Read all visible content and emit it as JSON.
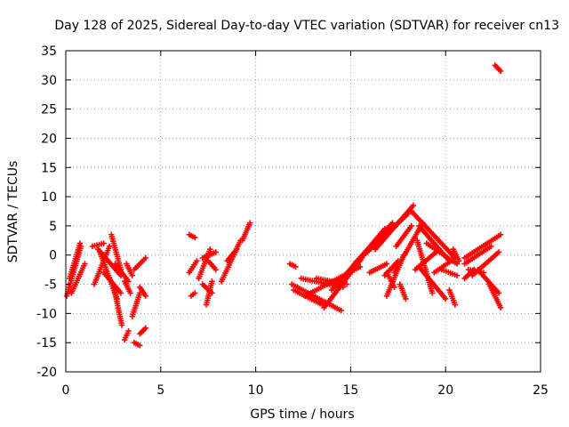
{
  "chart_data": {
    "type": "scatter",
    "title": "Day 128 of 2025, Sidereal Day-to-day VTEC variation (SDTVAR) for receiver cn13",
    "xlabel": "GPS time / hours",
    "ylabel": "SDTVAR / TECUs",
    "xlim": [
      0,
      25
    ],
    "ylim": [
      -20,
      35
    ],
    "xticks": [
      "0",
      "5",
      "10",
      "15",
      "20",
      "25"
    ],
    "yticks": [
      "-20",
      "-15",
      "-10",
      "-5",
      "0",
      "5",
      "10",
      "15",
      "20",
      "25",
      "30",
      "35"
    ],
    "grid": true,
    "marker": "+",
    "color": "#ff0000",
    "tracks": [
      {
        "x0": 0.05,
        "y0": -7.0,
        "x1": 0.8,
        "y1": 1.5
      },
      {
        "x0": 0.2,
        "y0": -4.0,
        "x1": 0.75,
        "y1": 2.0
      },
      {
        "x0": 0.3,
        "y0": -6.5,
        "x1": 1.0,
        "y1": -1.5
      },
      {
        "x0": 1.4,
        "y0": 1.5,
        "x1": 2.0,
        "y1": 2.0
      },
      {
        "x0": 1.5,
        "y0": -5.0,
        "x1": 2.3,
        "y1": 1.5
      },
      {
        "x0": 1.7,
        "y0": 1.0,
        "x1": 2.9,
        "y1": -3.5
      },
      {
        "x0": 1.8,
        "y0": 0.5,
        "x1": 2.7,
        "y1": -7.5
      },
      {
        "x0": 2.0,
        "y0": -3.0,
        "x1": 2.9,
        "y1": -6.5
      },
      {
        "x0": 2.4,
        "y0": 3.5,
        "x1": 2.9,
        "y1": -2.5
      },
      {
        "x0": 2.5,
        "y0": -5.0,
        "x1": 2.95,
        "y1": -12.0
      },
      {
        "x0": 2.6,
        "y0": -1.5,
        "x1": 3.3,
        "y1": -4.5
      },
      {
        "x0": 3.1,
        "y0": -4.5,
        "x1": 3.4,
        "y1": -6.5
      },
      {
        "x0": 3.2,
        "y0": -1.5,
        "x1": 3.5,
        "y1": -3.5
      },
      {
        "x0": 3.1,
        "y0": -14.5,
        "x1": 3.3,
        "y1": -13.0
      },
      {
        "x0": 3.5,
        "y0": -10.5,
        "x1": 3.9,
        "y1": -6.5
      },
      {
        "x0": 3.6,
        "y0": -15.0,
        "x1": 3.9,
        "y1": -15.5
      },
      {
        "x0": 3.6,
        "y0": -2.5,
        "x1": 4.2,
        "y1": -0.5
      },
      {
        "x0": 3.9,
        "y0": -13.5,
        "x1": 4.2,
        "y1": -12.5
      },
      {
        "x0": 3.9,
        "y0": -5.5,
        "x1": 4.2,
        "y1": -7.0
      },
      {
        "x0": 6.5,
        "y0": 3.5,
        "x1": 6.8,
        "y1": 3.0
      },
      {
        "x0": 6.5,
        "y0": -3.0,
        "x1": 6.9,
        "y1": -1.0
      },
      {
        "x0": 6.6,
        "y0": -7.0,
        "x1": 6.8,
        "y1": -6.5
      },
      {
        "x0": 7.0,
        "y0": -4.0,
        "x1": 7.6,
        "y1": 1.0
      },
      {
        "x0": 7.2,
        "y0": -0.5,
        "x1": 7.9,
        "y1": 0.5
      },
      {
        "x0": 7.2,
        "y0": -5.0,
        "x1": 7.7,
        "y1": -6.5
      },
      {
        "x0": 7.4,
        "y0": -8.5,
        "x1": 7.7,
        "y1": -4.5
      },
      {
        "x0": 7.5,
        "y0": -1.0,
        "x1": 7.9,
        "y1": -2.5
      },
      {
        "x0": 8.2,
        "y0": -4.5,
        "x1": 9.2,
        "y1": 2.5
      },
      {
        "x0": 8.5,
        "y0": -1.0,
        "x1": 9.0,
        "y1": 1.0
      },
      {
        "x0": 9.3,
        "y0": 2.5,
        "x1": 9.7,
        "y1": 5.5
      },
      {
        "x0": 11.8,
        "y0": -1.5,
        "x1": 12.1,
        "y1": -2.0
      },
      {
        "x0": 11.9,
        "y0": -5.0,
        "x1": 14.5,
        "y1": -9.5
      },
      {
        "x0": 12.0,
        "y0": -6.0,
        "x1": 13.5,
        "y1": -8.5
      },
      {
        "x0": 12.4,
        "y0": -4.0,
        "x1": 14.6,
        "y1": -5.5
      },
      {
        "x0": 12.6,
        "y0": -7.0,
        "x1": 15.5,
        "y1": -2.0
      },
      {
        "x0": 13.2,
        "y0": -4.0,
        "x1": 14.8,
        "y1": -5.0
      },
      {
        "x0": 13.6,
        "y0": -9.0,
        "x1": 15.6,
        "y1": -0.5
      },
      {
        "x0": 14.0,
        "y0": -6.0,
        "x1": 16.2,
        "y1": 2.0
      },
      {
        "x0": 14.6,
        "y0": -4.0,
        "x1": 16.8,
        "y1": 4.5
      },
      {
        "x0": 15.2,
        "y0": -1.5,
        "x1": 17.2,
        "y1": 5.5
      },
      {
        "x0": 15.7,
        "y0": 0.0,
        "x1": 18.0,
        "y1": 7.0
      },
      {
        "x0": 16.0,
        "y0": -3.0,
        "x1": 16.9,
        "y1": -1.5
      },
      {
        "x0": 16.3,
        "y0": 1.0,
        "x1": 18.3,
        "y1": 8.5
      },
      {
        "x0": 16.8,
        "y0": -3.5,
        "x1": 17.5,
        "y1": -1.0
      },
      {
        "x0": 16.9,
        "y0": -7.0,
        "x1": 17.8,
        "y1": 0.0
      },
      {
        "x0": 16.9,
        "y0": -3.0,
        "x1": 17.3,
        "y1": -5.5
      },
      {
        "x0": 17.3,
        "y0": -3.0,
        "x1": 18.8,
        "y1": 5.5
      },
      {
        "x0": 17.4,
        "y0": 1.5,
        "x1": 18.2,
        "y1": 5.0
      },
      {
        "x0": 17.6,
        "y0": -5.0,
        "x1": 17.9,
        "y1": -7.5
      },
      {
        "x0": 18.2,
        "y0": 7.5,
        "x1": 20.5,
        "y1": -0.5
      },
      {
        "x0": 18.6,
        "y0": 5.0,
        "x1": 20.2,
        "y1": -1.0
      },
      {
        "x0": 18.4,
        "y0": -2.5,
        "x1": 19.5,
        "y1": 0.5
      },
      {
        "x0": 18.5,
        "y0": 2.5,
        "x1": 19.3,
        "y1": -6.5
      },
      {
        "x0": 18.6,
        "y0": -2.0,
        "x1": 20.0,
        "y1": -7.5
      },
      {
        "x0": 19.0,
        "y0": 2.0,
        "x1": 20.6,
        "y1": -1.5
      },
      {
        "x0": 19.4,
        "y0": -3.0,
        "x1": 20.3,
        "y1": -1.0
      },
      {
        "x0": 19.8,
        "y0": -2.5,
        "x1": 20.6,
        "y1": -3.5
      },
      {
        "x0": 20.2,
        "y0": -6.0,
        "x1": 20.5,
        "y1": -8.5
      },
      {
        "x0": 20.4,
        "y0": 1.0,
        "x1": 20.7,
        "y1": -1.0
      },
      {
        "x0": 21.0,
        "y0": -0.5,
        "x1": 22.9,
        "y1": 3.5
      },
      {
        "x0": 21.0,
        "y0": -1.5,
        "x1": 22.4,
        "y1": 1.5
      },
      {
        "x0": 21.0,
        "y0": -4.0,
        "x1": 21.5,
        "y1": -2.5
      },
      {
        "x0": 21.4,
        "y0": -3.5,
        "x1": 22.8,
        "y1": 0.5
      },
      {
        "x0": 21.2,
        "y0": -2.5,
        "x1": 22.0,
        "y1": -3.0
      },
      {
        "x0": 21.7,
        "y0": -2.5,
        "x1": 22.8,
        "y1": -6.5
      },
      {
        "x0": 22.3,
        "y0": -5.0,
        "x1": 22.9,
        "y1": -9.0
      },
      {
        "x0": 22.6,
        "y0": 32.5,
        "x1": 22.9,
        "y1": 31.5
      }
    ]
  }
}
